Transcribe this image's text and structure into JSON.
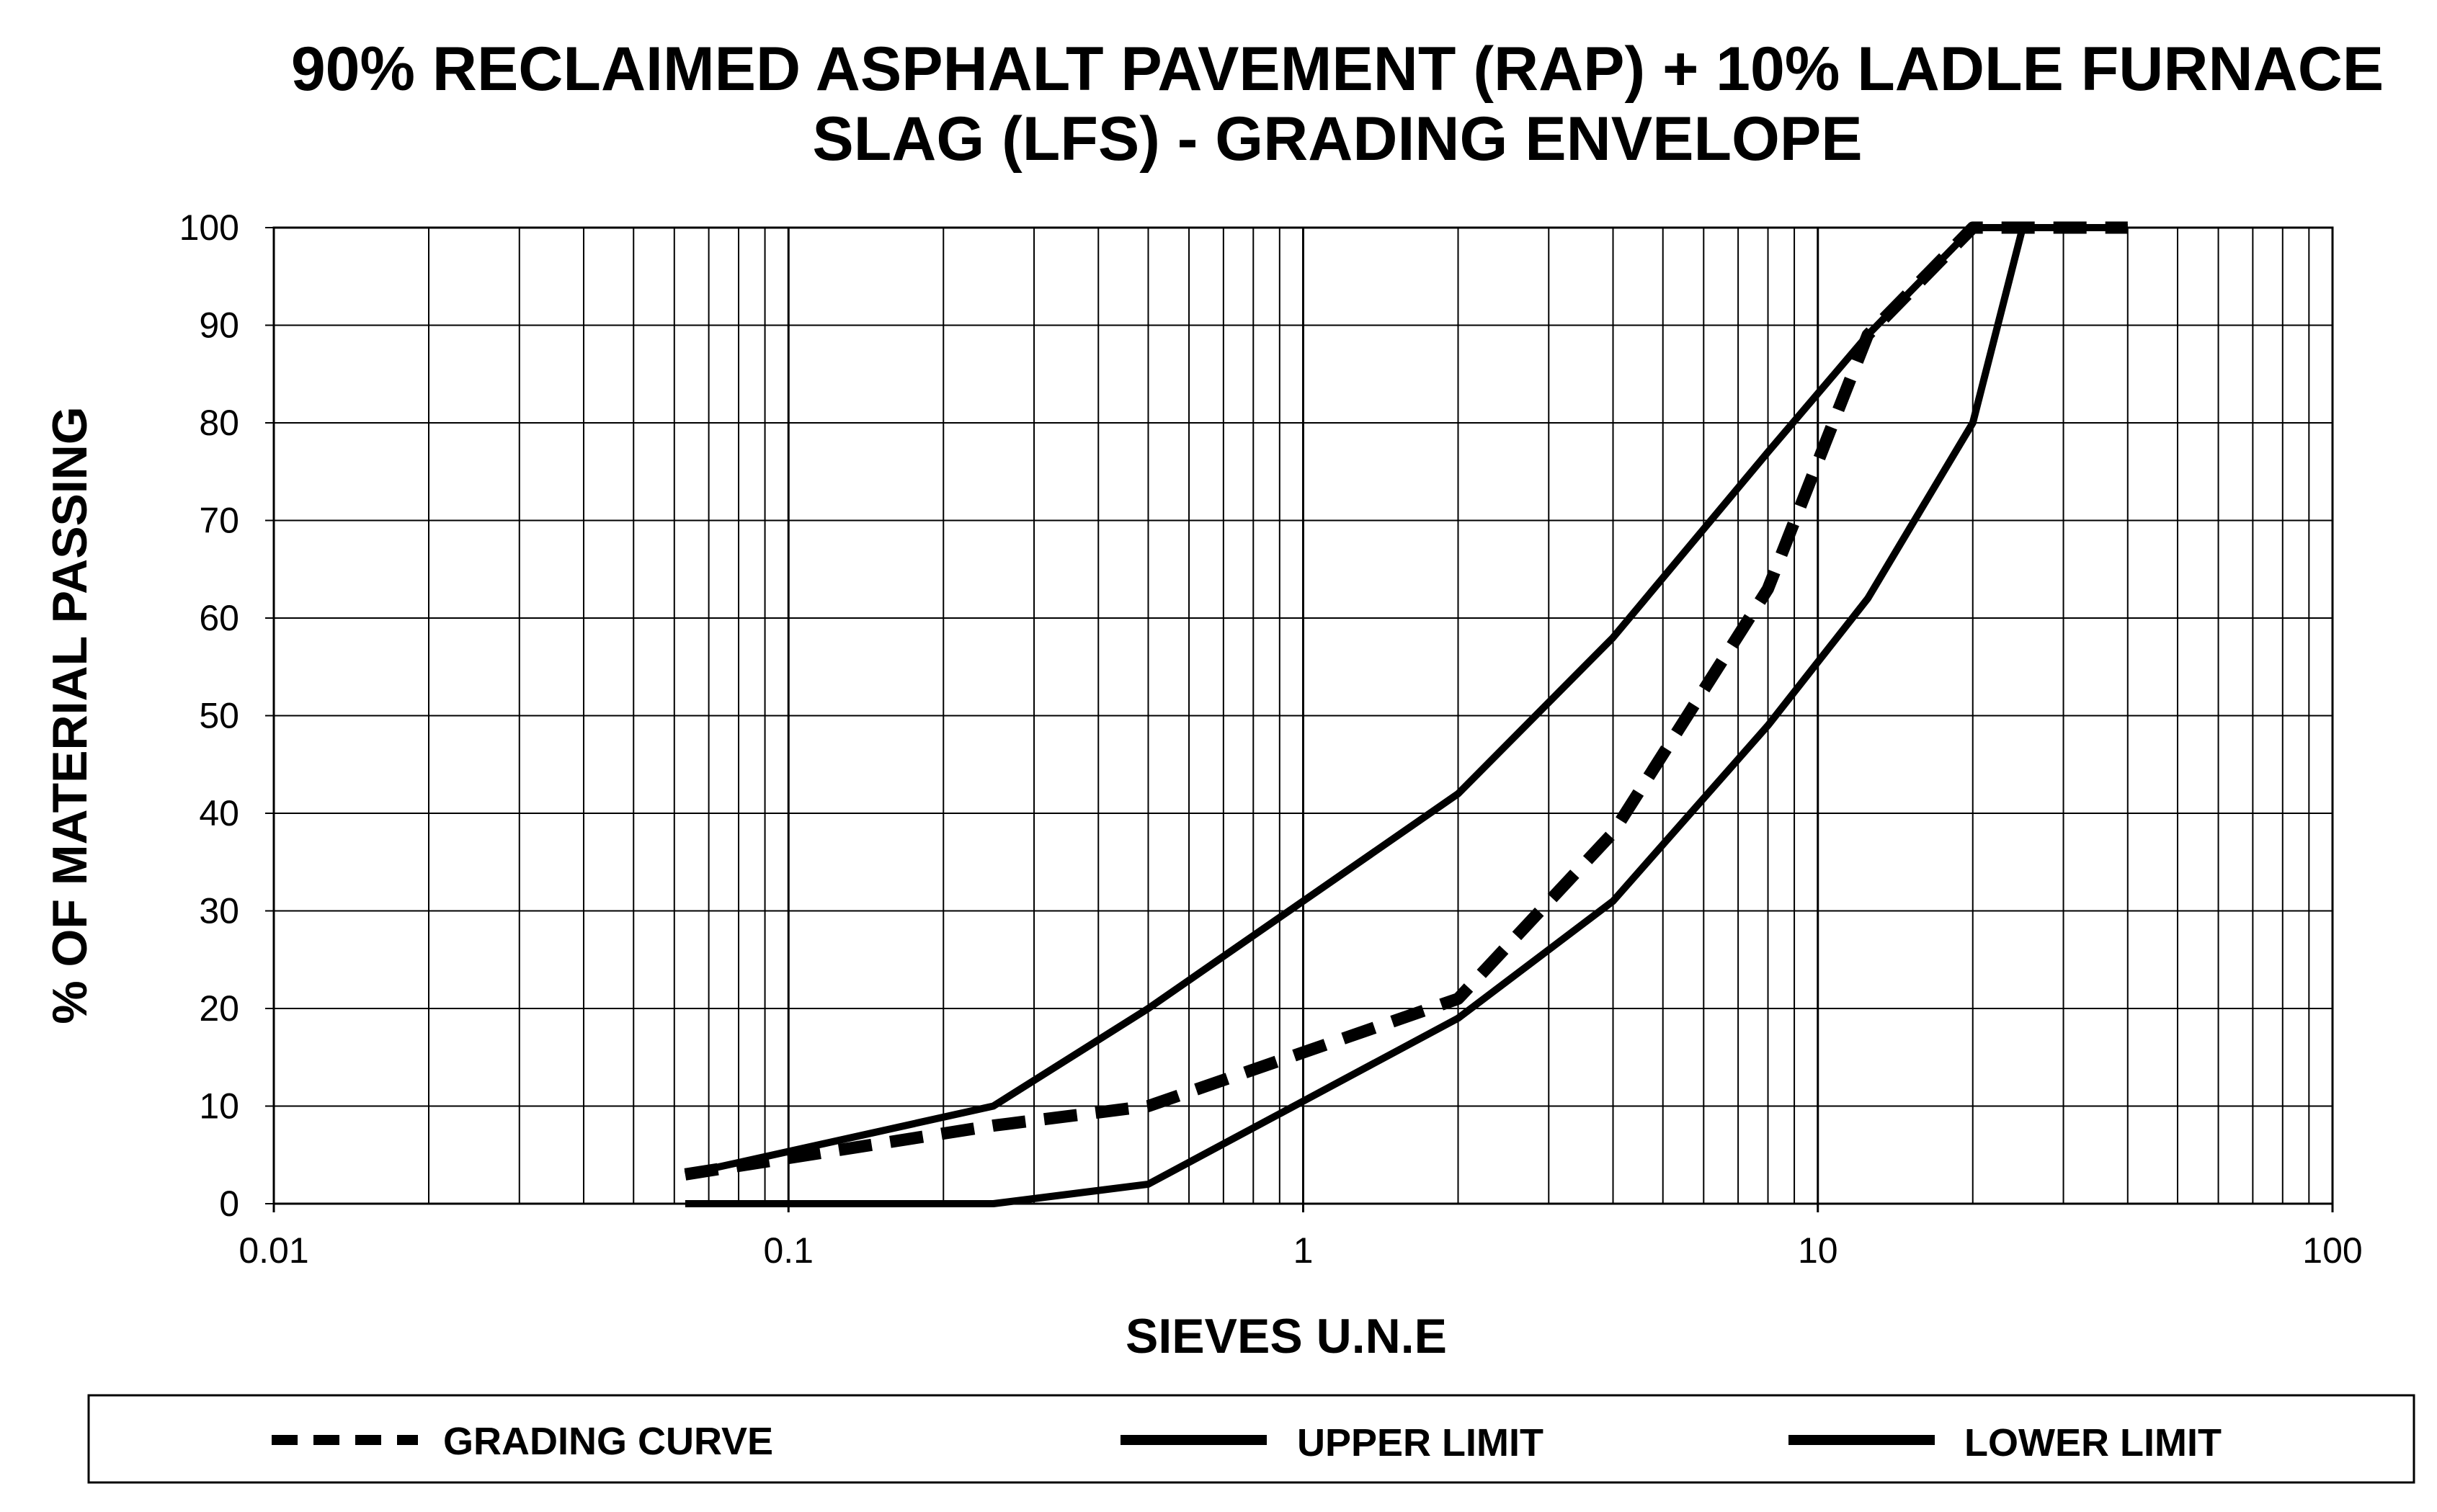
{
  "chart_data": {
    "type": "line",
    "title_lines": [
      "90% RECLAIMED ASPHALT PAVEMENT (RAP) + 10% LADLE FURNACE",
      "SLAG (LFS) - GRADING ENVELOPE"
    ],
    "xlabel": "SIEVES U.N.E",
    "ylabel": "% OF MATERIAL PASSING",
    "x_scale": "log",
    "xlim": [
      0.01,
      100
    ],
    "ylim": [
      0,
      100
    ],
    "x_ticks": [
      "0.01",
      "0.1",
      "1",
      "10",
      "100"
    ],
    "y_ticks": [
      "0",
      "10",
      "20",
      "30",
      "40",
      "50",
      "60",
      "70",
      "80",
      "90",
      "100"
    ],
    "grid": true,
    "legend_position": "bottom",
    "series": [
      {
        "name": "GRADING CURVE",
        "style": "dashed",
        "x": [
          0.063,
          0.25,
          0.5,
          2,
          4,
          8,
          12.5,
          20,
          25,
          40
        ],
        "y": [
          3,
          8,
          10,
          21,
          38,
          63,
          89,
          100,
          100,
          100
        ]
      },
      {
        "name": "UPPER LIMIT",
        "style": "solid",
        "x": [
          0.063,
          0.25,
          0.5,
          2,
          4,
          8,
          12.5,
          20,
          25,
          40
        ],
        "y": [
          3,
          10,
          20,
          42,
          58,
          77,
          89,
          100,
          100,
          100
        ]
      },
      {
        "name": "LOWER LIMIT",
        "style": "solid",
        "x": [
          0.063,
          0.25,
          0.5,
          2,
          4,
          8,
          12.5,
          20,
          25
        ],
        "y": [
          0,
          0,
          2,
          19,
          31,
          49,
          62,
          80,
          100
        ]
      }
    ]
  }
}
